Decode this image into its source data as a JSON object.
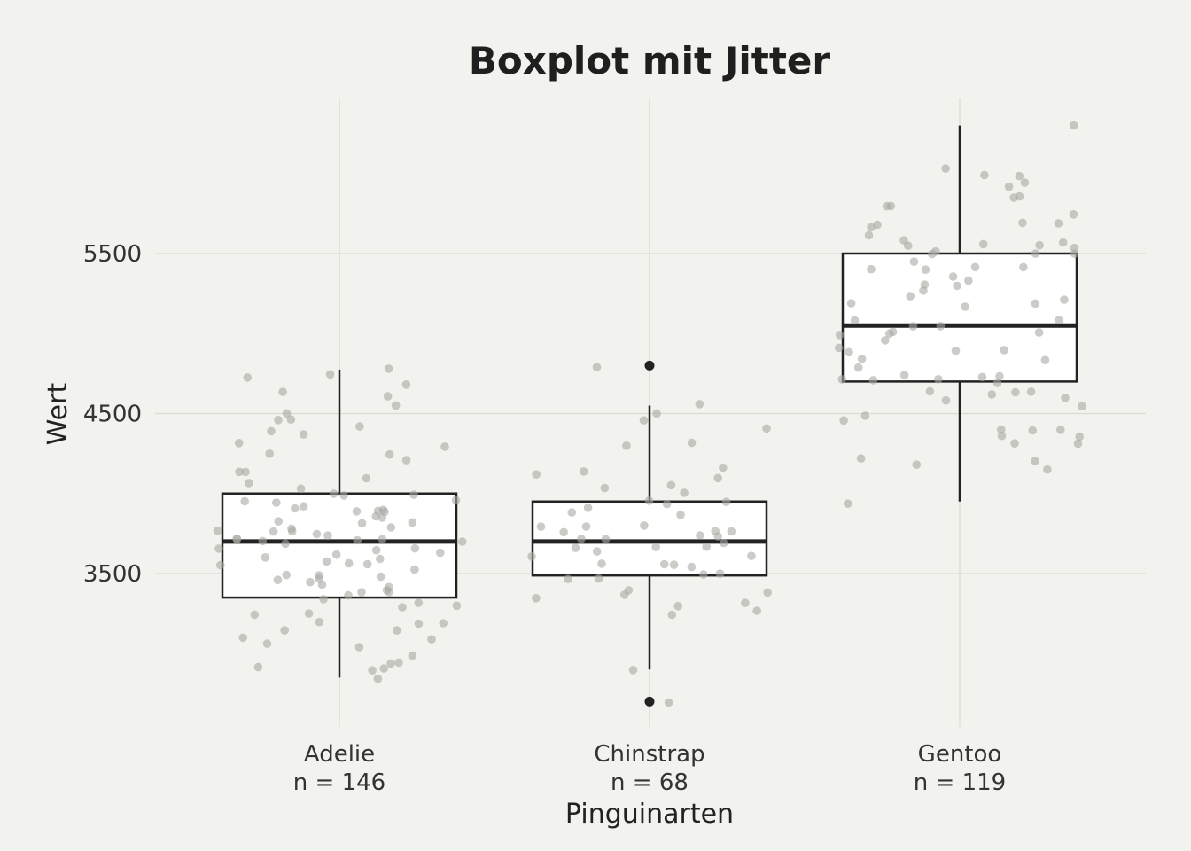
{
  "chart_data": {
    "type": "boxplot",
    "title": "Boxplot mit Jitter",
    "xlabel": "Pinguinarten",
    "ylabel": "Wert",
    "ylim": [
      2550,
      6480
    ],
    "yticks": [
      3500,
      4500,
      5500
    ],
    "grid": true,
    "categories": [
      "Adelie",
      "Chinstrap",
      "Gentoo"
    ],
    "counts": [
      "n = 146",
      "n = 68",
      "n = 119"
    ],
    "boxes": [
      {
        "name": "Adelie",
        "whisker_low": 2850,
        "q1": 3350,
        "median": 3700,
        "q3": 4000,
        "whisker_high": 4775,
        "outliers": []
      },
      {
        "name": "Chinstrap",
        "whisker_low": 2900,
        "q1": 3488,
        "median": 3700,
        "q3": 3950,
        "whisker_high": 4550,
        "outliers": [
          2700,
          4800
        ]
      },
      {
        "name": "Gentoo",
        "whisker_low": 3950,
        "q1": 4700,
        "median": 5050,
        "q3": 5500,
        "whisker_high": 6300,
        "outliers": []
      }
    ],
    "jitter_points": {
      "Adelie": [
        2850,
        2875,
        2900,
        2900,
        2925,
        2950,
        3000,
        3050,
        3050,
        3075,
        3100,
        3150,
        3150,
        3175,
        3200,
        3200,
        3250,
        3250,
        3300,
        3300,
        3325,
        3325,
        3350,
        3400,
        3400,
        3400,
        3425,
        3450,
        3450,
        3450,
        3475,
        3500,
        3500,
        3500,
        3525,
        3550,
        3550,
        3550,
        3575,
        3600,
        3600,
        3600,
        3625,
        3650,
        3650,
        3650,
        3675,
        3700,
        3700,
        3700,
        3700,
        3700,
        3725,
        3725,
        3750,
        3750,
        3750,
        3775,
        3775,
        3800,
        3800,
        3800,
        3825,
        3850,
        3850,
        3875,
        3900,
        3900,
        3900,
        3900,
        3925,
        3950,
        3950,
        3950,
        3975,
        4000,
        4000,
        4050,
        4050,
        4100,
        4150,
        4150,
        4200,
        4250,
        4250,
        4300,
        4300,
        4350,
        4400,
        4400,
        4450,
        4450,
        4500,
        4550,
        4600,
        4650,
        4700,
        4725,
        4750,
        4775
      ],
      "Chinstrap": [
        2700,
        2900,
        3250,
        3250,
        3300,
        3325,
        3350,
        3350,
        3400,
        3400,
        3450,
        3450,
        3475,
        3500,
        3525,
        3550,
        3550,
        3575,
        3600,
        3600,
        3625,
        3650,
        3650,
        3675,
        3700,
        3700,
        3700,
        3725,
        3750,
        3750,
        3775,
        3775,
        3800,
        3800,
        3800,
        3850,
        3900,
        3900,
        3950,
        3950,
        3950,
        4000,
        4050,
        4050,
        4100,
        4100,
        4150,
        4150,
        4300,
        4300,
        4400,
        4450,
        4500,
        4550,
        4800
      ],
      "Gentoo": [
        3950,
        4150,
        4200,
        4200,
        4200,
        4300,
        4300,
        4350,
        4375,
        4400,
        4400,
        4400,
        4450,
        4500,
        4550,
        4600,
        4600,
        4600,
        4625,
        4650,
        4650,
        4700,
        4700,
        4700,
        4725,
        4725,
        4750,
        4750,
        4800,
        4850,
        4850,
        4875,
        4875,
        4900,
        4925,
        4950,
        5000,
        5000,
        5000,
        5000,
        5050,
        5050,
        5100,
        5100,
        5150,
        5200,
        5200,
        5200,
        5250,
        5250,
        5300,
        5300,
        5350,
        5350,
        5400,
        5400,
        5400,
        5400,
        5450,
        5500,
        5500,
        5500,
        5500,
        5550,
        5550,
        5550,
        5550,
        5550,
        5600,
        5600,
        5650,
        5700,
        5700,
        5700,
        5750,
        5800,
        5800,
        5850,
        5850,
        5900,
        5950,
        6000,
        6000,
        6050,
        6300
      ]
    }
  }
}
